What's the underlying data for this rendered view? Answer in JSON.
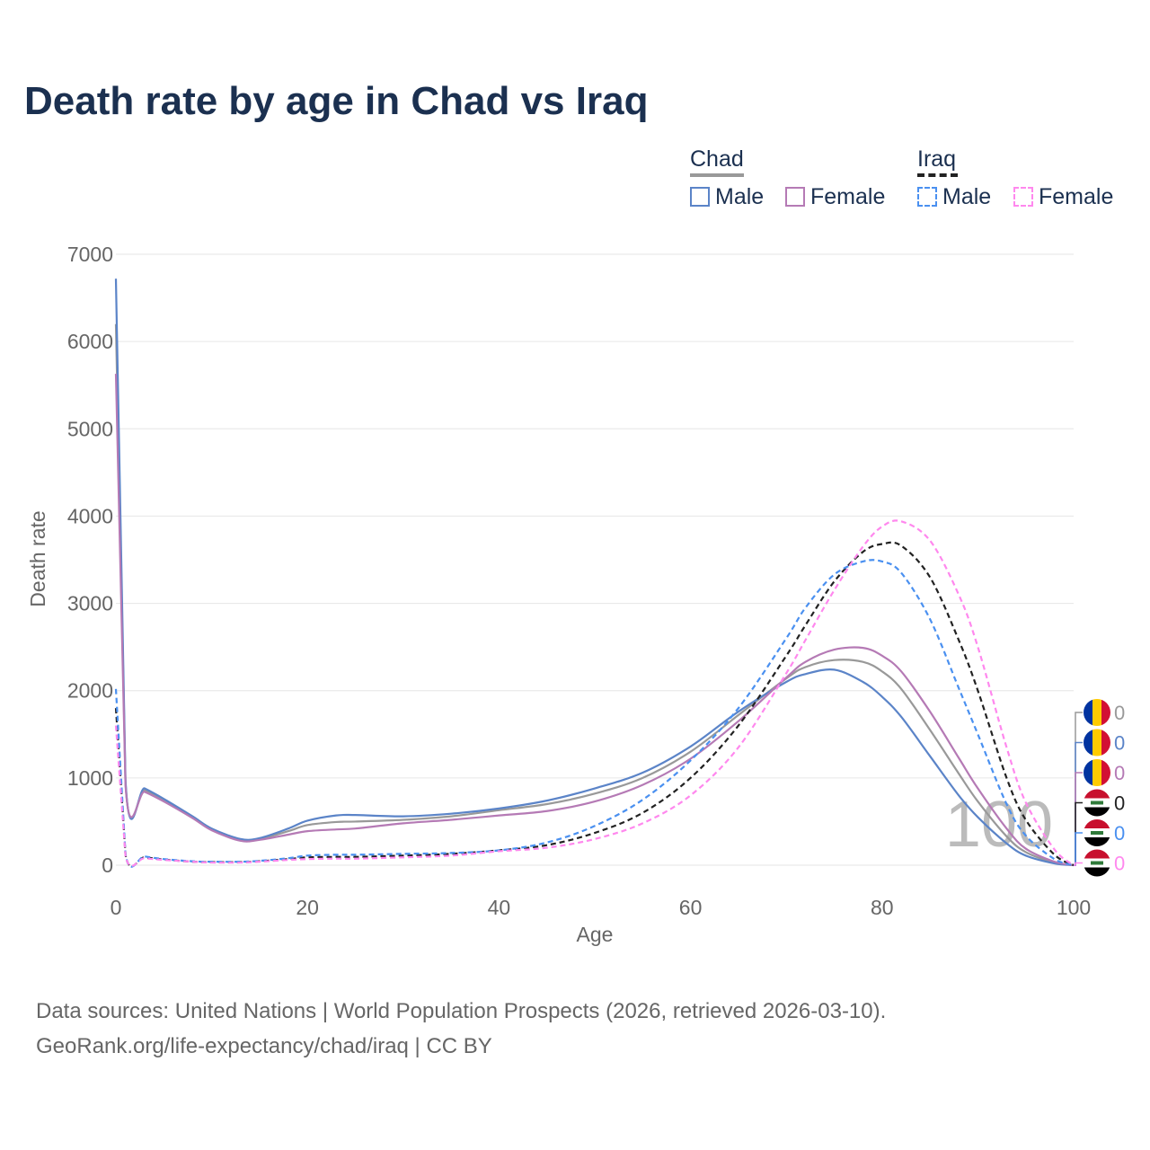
{
  "title": "Death rate by age in Chad vs Iraq",
  "legend": {
    "chad": "Chad",
    "iraq": "Iraq",
    "male": "Male",
    "female": "Female"
  },
  "source": {
    "line1": "Data sources: United Nations | World Population Prospects (2026, retrieved 2026-03-10).",
    "line2": "GeoRank.org/life-expectancy/chad/iraq | CC BY"
  },
  "watermark": "100",
  "end_labels": [
    "0",
    "0",
    "0",
    "0",
    "0",
    "0"
  ],
  "chart_data": {
    "type": "line",
    "title": "Death rate by age in Chad vs Iraq",
    "xlabel": "Age",
    "ylabel": "Death rate",
    "xlim": [
      0,
      100
    ],
    "ylim": [
      0,
      7000
    ],
    "xticks": [
      "0",
      "20",
      "40",
      "60",
      "80",
      "100"
    ],
    "yticks": [
      "0",
      "1000",
      "2000",
      "3000",
      "4000",
      "5000",
      "6000",
      "7000"
    ],
    "x": [
      0,
      1,
      3,
      5,
      8,
      10,
      13,
      15,
      18,
      20,
      23,
      25,
      30,
      35,
      40,
      45,
      50,
      55,
      60,
      65,
      70,
      72,
      75,
      78,
      80,
      82,
      85,
      88,
      90,
      93,
      95,
      98,
      100
    ],
    "series": [
      {
        "name": "Chad",
        "color": "#999999",
        "dash": false,
        "values": [
          6200,
          950,
          860,
          750,
          550,
          410,
          290,
          300,
          390,
          460,
          495,
          500,
          520,
          560,
          630,
          700,
          820,
          1000,
          1300,
          1720,
          2140,
          2270,
          2350,
          2330,
          2220,
          2020,
          1550,
          1050,
          730,
          330,
          150,
          30,
          0
        ]
      },
      {
        "name": "Chad Male",
        "color": "#5b84c8",
        "dash": false,
        "values": [
          6720,
          980,
          880,
          760,
          560,
          420,
          300,
          310,
          420,
          510,
          570,
          575,
          560,
          590,
          650,
          740,
          880,
          1060,
          1360,
          1760,
          2100,
          2190,
          2240,
          2100,
          1930,
          1700,
          1250,
          800,
          550,
          250,
          110,
          20,
          0
        ]
      },
      {
        "name": "Chad Female",
        "color": "#b57ab5",
        "dash": false,
        "values": [
          5630,
          920,
          840,
          730,
          540,
          400,
          280,
          290,
          350,
          390,
          410,
          420,
          480,
          520,
          570,
          620,
          730,
          920,
          1220,
          1650,
          2150,
          2330,
          2470,
          2490,
          2400,
          2220,
          1760,
          1230,
          880,
          420,
          190,
          40,
          0
        ]
      },
      {
        "name": "Iraq",
        "color": "#222222",
        "dash": true,
        "values": [
          1800,
          120,
          90,
          65,
          40,
          35,
          35,
          45,
          70,
          90,
          95,
          95,
          110,
          130,
          170,
          230,
          370,
          600,
          1000,
          1600,
          2400,
          2750,
          3250,
          3590,
          3680,
          3660,
          3300,
          2580,
          2000,
          1000,
          520,
          120,
          0
        ]
      },
      {
        "name": "Iraq Male",
        "color": "#4a90f0",
        "dash": true,
        "values": [
          2020,
          130,
          100,
          70,
          45,
          40,
          40,
          50,
          80,
          110,
          120,
          120,
          130,
          140,
          170,
          260,
          450,
          750,
          1200,
          1800,
          2600,
          2950,
          3330,
          3480,
          3480,
          3350,
          2820,
          2030,
          1500,
          700,
          340,
          70,
          0
        ]
      },
      {
        "name": "Iraq Female",
        "color": "#ff88ee",
        "dash": true,
        "values": [
          1600,
          110,
          80,
          60,
          40,
          30,
          30,
          40,
          60,
          70,
          75,
          75,
          90,
          110,
          160,
          200,
          300,
          480,
          800,
          1350,
          2200,
          2580,
          3150,
          3650,
          3880,
          3940,
          3720,
          3100,
          2500,
          1350,
          720,
          180,
          0
        ]
      }
    ]
  }
}
